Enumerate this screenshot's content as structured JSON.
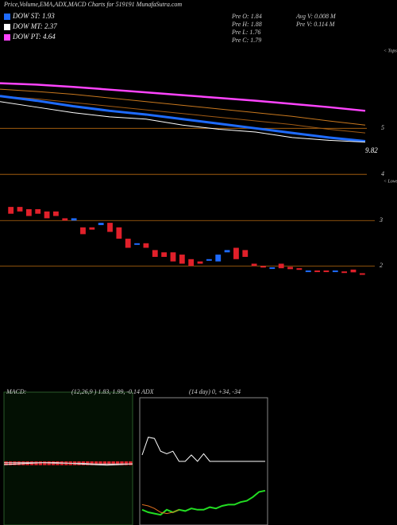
{
  "header": {
    "title": "Price,Volume,EMA,ADX,MACD Charts for 519191 MunafaSutra.com",
    "legend": [
      {
        "label": "DOW ST: 1.93",
        "color": "#1e6bff"
      },
      {
        "label": "DOW MT: 2.37",
        "color": "#ffffff"
      },
      {
        "label": "DOW PT: 4.64",
        "color": "#ff44ff"
      }
    ],
    "info": [
      "Pre O: 1.84",
      "Pre H: 1.88",
      "Pre L: 1.76",
      "Pre C: 1.79",
      "Avg V: 0.008 M",
      "Pre V: 0.114 M"
    ]
  },
  "chart_data": [
    {
      "type": "line",
      "ylim": [
        3.9,
        6.75
      ],
      "yticks": [
        4,
        5
      ],
      "annotations": [
        "9.82",
        "< Tops",
        "< Lows"
      ],
      "series": [
        {
          "color": "#ff44ff",
          "values": [
            5.98,
            5.95,
            5.9,
            5.84,
            5.78,
            5.72,
            5.66,
            5.6,
            5.53,
            5.46,
            5.38
          ]
        },
        {
          "color": "#c8781e",
          "values": [
            5.85,
            5.8,
            5.74,
            5.66,
            5.58,
            5.5,
            5.42,
            5.34,
            5.26,
            5.16,
            5.07
          ]
        },
        {
          "color": "#a05a14",
          "values": [
            5.7,
            5.64,
            5.56,
            5.48,
            5.4,
            5.32,
            5.24,
            5.16,
            5.08,
            4.98,
            4.9
          ]
        },
        {
          "color": "#1e6bff",
          "values": [
            5.7,
            5.6,
            5.48,
            5.38,
            5.3,
            5.2,
            5.1,
            5.0,
            4.9,
            4.8,
            4.72
          ]
        },
        {
          "color": "#ffffff",
          "values": [
            5.58,
            5.46,
            5.34,
            5.25,
            5.2,
            5.07,
            4.98,
            4.92,
            4.8,
            4.74,
            4.7
          ]
        }
      ]
    },
    {
      "type": "candlestick",
      "ylim": [
        0.5,
        3.6
      ],
      "yticks": [
        2,
        3
      ],
      "open": [
        3.3,
        3.3,
        3.25,
        3.25,
        3.2,
        3.2,
        3.05,
        3.0,
        2.85,
        2.85,
        2.9,
        2.95,
        2.85,
        2.6,
        2.5,
        2.5,
        2.35,
        2.3,
        2.3,
        2.25,
        2.15,
        2.1,
        2.15,
        2.1,
        2.3,
        2.4,
        2.35,
        2.05,
        2.0,
        1.95,
        2.05,
        1.98,
        1.95,
        1.9,
        1.9,
        1.9,
        1.88,
        1.88,
        1.92,
        1.84
      ],
      "close": [
        3.15,
        3.2,
        3.1,
        3.15,
        3.05,
        3.1,
        3.0,
        3.05,
        2.7,
        2.8,
        2.95,
        2.75,
        2.6,
        2.4,
        2.5,
        2.4,
        2.2,
        2.2,
        2.1,
        2.05,
        2.0,
        2.05,
        2.15,
        2.25,
        2.35,
        2.15,
        2.2,
        2.0,
        1.98,
        1.97,
        1.95,
        1.93,
        1.92,
        1.9,
        1.88,
        1.89,
        1.9,
        1.85,
        1.86,
        1.82
      ]
    },
    {
      "type": "macd",
      "label": "MACD:",
      "params": "(12,26,9 ) 1.83, 1.99, -0.14",
      "ylim": [
        -1,
        1
      ],
      "series": [
        {
          "color": "#ffffff",
          "values": [
            -0.05,
            -0.04,
            -0.03,
            -0.02,
            -0.02,
            -0.03,
            -0.04,
            -0.05,
            -0.06,
            -0.05,
            -0.04
          ]
        },
        {
          "color": "#cccccc",
          "values": [
            -0.02,
            -0.02,
            -0.02,
            -0.02,
            -0.03,
            -0.03,
            -0.03,
            -0.04,
            -0.04,
            -0.04,
            -0.04
          ]
        }
      ],
      "histogram": [
        -0.06,
        -0.06,
        -0.06,
        -0.06,
        -0.06,
        -0.06,
        -0.06,
        -0.06,
        -0.06,
        -0.06,
        -0.06,
        -0.06,
        -0.06,
        -0.06,
        -0.06,
        -0.06,
        -0.06,
        -0.06,
        -0.06,
        -0.06,
        -0.06,
        -0.06,
        -0.06,
        -0.06,
        -0.06,
        -0.06,
        -0.06,
        -0.06,
        -0.06,
        -0.06
      ]
    },
    {
      "type": "adx",
      "label": "ADX",
      "params": "(14 day) 0, +34, -34",
      "ylim": [
        0,
        100
      ],
      "series": [
        {
          "color": "#ffffff",
          "values": [
            55,
            69,
            68,
            58,
            56,
            58,
            50,
            50,
            55,
            50,
            56,
            50,
            50,
            50,
            50,
            50,
            50,
            50,
            50,
            50,
            50
          ]
        },
        {
          "color": "#22dd22",
          "values": [
            12,
            10,
            9,
            8,
            12,
            10,
            12,
            11,
            13,
            12,
            12,
            14,
            13,
            15,
            16,
            16,
            18,
            19,
            22,
            26,
            27
          ]
        },
        {
          "color": "#e07020",
          "values": [
            16,
            15,
            13,
            10,
            9,
            10,
            12,
            null,
            null,
            null,
            null,
            null,
            null,
            null,
            null,
            null,
            null,
            null,
            null,
            null,
            null
          ]
        }
      ]
    }
  ]
}
